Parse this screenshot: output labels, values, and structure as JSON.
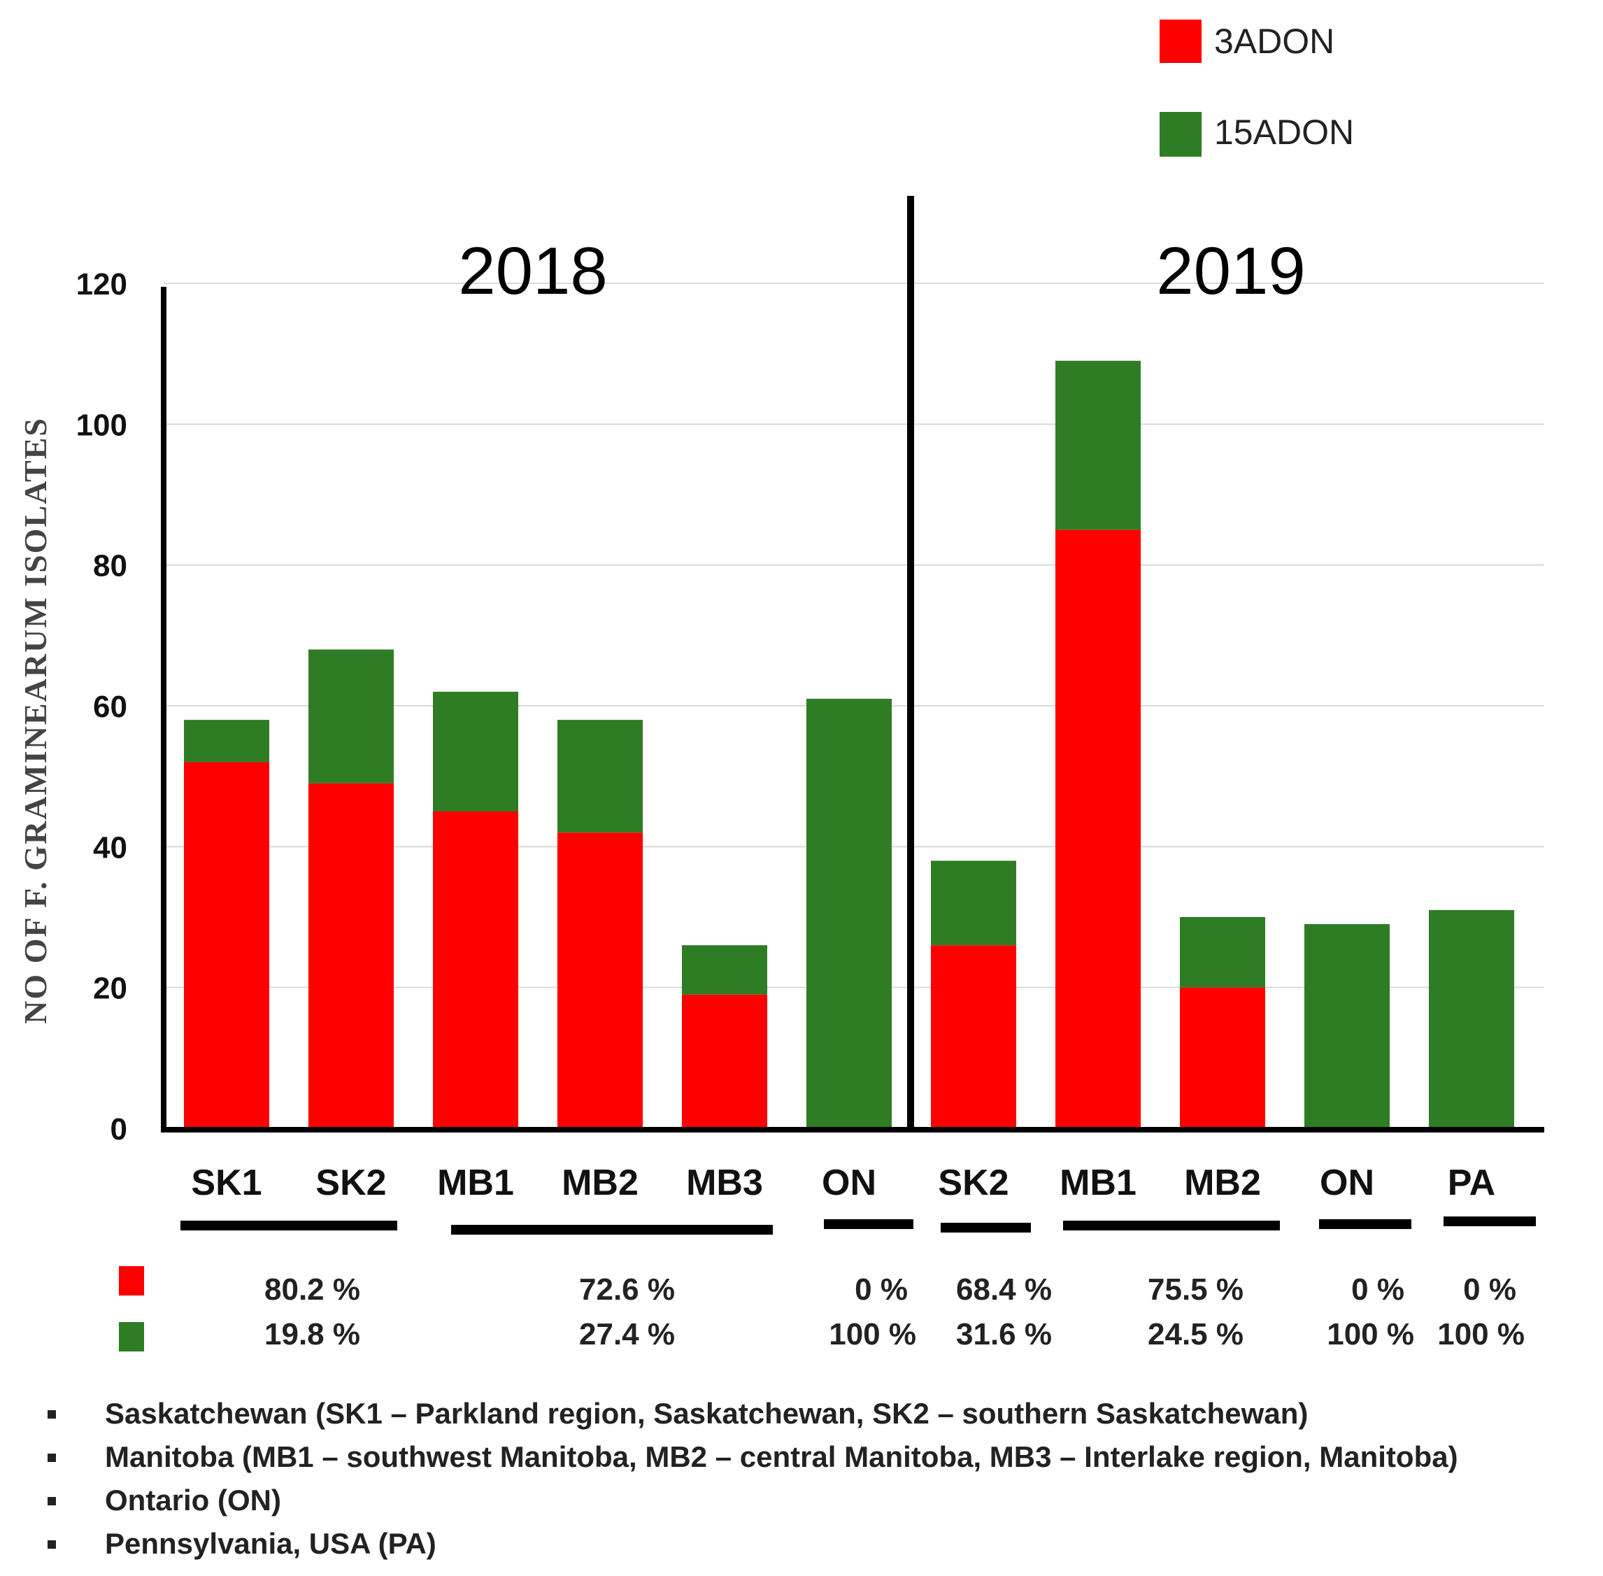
{
  "chart_data": {
    "type": "bar",
    "stacked": true,
    "ylabel": "NO OF F. GRAMINEARUM ISOLATES",
    "ylim": [
      0,
      120
    ],
    "yticks": [
      0,
      20,
      40,
      60,
      80,
      100,
      120
    ],
    "grid": true,
    "groups": [
      {
        "year": "2018",
        "categories": [
          "SK1",
          "SK2",
          "MB1",
          "MB2",
          "MB3",
          "ON"
        ]
      },
      {
        "year": "2019",
        "categories": [
          "SK2",
          "MB1",
          "MB2",
          "ON",
          "PA"
        ]
      }
    ],
    "categories": [
      "SK1",
      "SK2",
      "MB1",
      "MB2",
      "MB3",
      "ON",
      "SK2",
      "MB1",
      "MB2",
      "ON",
      "PA"
    ],
    "series": [
      {
        "name": "3ADON",
        "color": "#ff0000",
        "values": [
          52,
          49,
          45,
          42,
          19,
          0,
          26,
          85,
          20,
          0,
          0
        ]
      },
      {
        "name": "15ADON",
        "color": "#2e7d24",
        "values": [
          6,
          19,
          17,
          16,
          7,
          61,
          12,
          24,
          10,
          29,
          31
        ]
      }
    ],
    "legend": {
      "position": "top-right",
      "entries": [
        "3ADON",
        "15ADON"
      ]
    },
    "percentages": [
      {
        "group": "SK1, SK2 (2018)",
        "adon3": "80.2 %",
        "adon15": "19.8 %"
      },
      {
        "group": "MB1, MB2, MB3 (2018)",
        "adon3": "72.6 %",
        "adon15": "27.4 %"
      },
      {
        "group": "ON (2018)",
        "adon3": "0 %",
        "adon15": "100 %"
      },
      {
        "group": "SK2 (2019)",
        "adon3": "68.4 %",
        "adon15": "31.6 %"
      },
      {
        "group": "MB1, MB2 (2019)",
        "adon3": "75.5 %",
        "adon15": "24.5 %"
      },
      {
        "group": "ON (2019)",
        "adon3": "0 %",
        "adon15": "100 %"
      },
      {
        "group": "PA (2019)",
        "adon3": "0 %",
        "adon15": "100 %"
      }
    ]
  },
  "footnotes": [
    "Saskatchewan (SK1 – Parkland region, Saskatchewan, SK2 – southern Saskatchewan)",
    "Manitoba (MB1 – southwest Manitoba, MB2 – central Manitoba, MB3 – Interlake region, Manitoba)",
    "Ontario (ON)",
    "Pennsylvania, USA (PA)"
  ]
}
